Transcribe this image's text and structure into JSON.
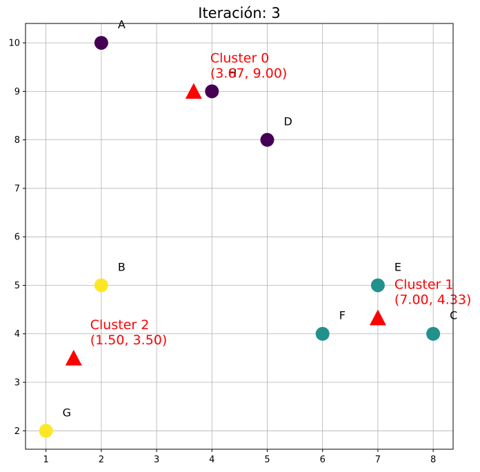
{
  "chart_data": {
    "type": "scatter",
    "title": "Iteración: 3",
    "xlabel": "",
    "ylabel": "",
    "xlim": [
      0.63,
      8.36
    ],
    "ylim": [
      1.62,
      10.4
    ],
    "xticks": [
      "1",
      "2",
      "3",
      "4",
      "5",
      "6",
      "7",
      "8"
    ],
    "yticks": [
      "2",
      "3",
      "4",
      "5",
      "6",
      "7",
      "8",
      "9",
      "10"
    ],
    "grid": true,
    "points": [
      {
        "label": "A",
        "x": 2,
        "y": 10,
        "cluster": 0
      },
      {
        "label": "H",
        "x": 4,
        "y": 9,
        "cluster": 0
      },
      {
        "label": "D",
        "x": 5,
        "y": 8,
        "cluster": 0
      },
      {
        "label": "B",
        "x": 2,
        "y": 5,
        "cluster": 2
      },
      {
        "label": "E",
        "x": 7,
        "y": 5,
        "cluster": 1
      },
      {
        "label": "F",
        "x": 6,
        "y": 4,
        "cluster": 1
      },
      {
        "label": "C",
        "x": 8,
        "y": 4,
        "cluster": 1
      },
      {
        "label": "G",
        "x": 1,
        "y": 2,
        "cluster": 2
      }
    ],
    "centroids": [
      {
        "name": "Cluster 0",
        "coords": "(3.67, 9.00)",
        "x": 3.67,
        "y": 9.0
      },
      {
        "name": "Cluster 1",
        "coords": "(7.00, 4.33)",
        "x": 7.0,
        "y": 4.33
      },
      {
        "name": "Cluster 2",
        "coords": "(1.50, 3.50)",
        "x": 1.5,
        "y": 3.5
      }
    ],
    "cluster_colors": [
      "#440154",
      "#21918c",
      "#fde725"
    ],
    "centroid_color": "#ff0000",
    "grid_color": "#b0b0b0"
  }
}
